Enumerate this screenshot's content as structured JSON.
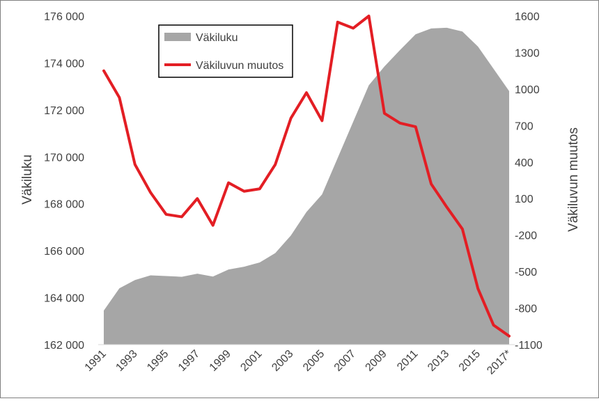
{
  "chart_data": {
    "type": "area+line",
    "categories": [
      "1991",
      "1992",
      "1993",
      "1994",
      "1995",
      "1996",
      "1997",
      "1998",
      "1999",
      "2000",
      "2001",
      "2002",
      "2003",
      "2004",
      "2005",
      "2006",
      "2007",
      "2008",
      "2009",
      "2010",
      "2011",
      "2012",
      "2013",
      "2014",
      "2015",
      "2016",
      "2017*"
    ],
    "x_tick_labels": [
      "1991",
      "1993",
      "1995",
      "1997",
      "1999",
      "2001",
      "2003",
      "2005",
      "2007",
      "2009",
      "2011",
      "2013",
      "2015",
      "2017*"
    ],
    "series": [
      {
        "name": "Väkiluku",
        "type": "area",
        "axis": "left",
        "color": "#a6a6a6",
        "values": [
          163450,
          164400,
          164750,
          164950,
          164920,
          164890,
          165020,
          164900,
          165200,
          165320,
          165500,
          165900,
          166650,
          167650,
          168400,
          169950,
          171500,
          173050,
          173850,
          174550,
          175220,
          175470,
          175500,
          175340,
          174700,
          173750,
          172800
        ]
      },
      {
        "name": "Väkiluvun muutos",
        "type": "line",
        "axis": "right",
        "color": "#e31e24",
        "values": [
          1150,
          930,
          380,
          150,
          -30,
          -50,
          100,
          -120,
          230,
          160,
          180,
          380,
          760,
          970,
          740,
          1550,
          1500,
          1600,
          800,
          720,
          690,
          220,
          30,
          -150,
          -640,
          -940,
          -1030
        ]
      }
    ],
    "y_left": {
      "label": "Väkiluku",
      "min": 162000,
      "max": 176000,
      "ticks": [
        162000,
        164000,
        166000,
        168000,
        170000,
        172000,
        174000,
        176000
      ],
      "tick_labels": [
        "162 000",
        "164 000",
        "166 000",
        "168 000",
        "170 000",
        "172 000",
        "174 000",
        "176 000"
      ]
    },
    "y_right": {
      "label": "Väkiluvun muutos",
      "min": -1100,
      "max": 1600,
      "ticks": [
        -1100,
        -800,
        -500,
        -200,
        100,
        400,
        700,
        1000,
        1300,
        1600
      ],
      "tick_labels": [
        "-1100",
        "-800",
        "-500",
        "-200",
        "100",
        "400",
        "700",
        "1000",
        "1300",
        "1600"
      ]
    },
    "legend": {
      "placement": "top-left inside plot",
      "entries": [
        "Väkiluku",
        "Väkiluvun muutos"
      ]
    },
    "grid": false
  }
}
